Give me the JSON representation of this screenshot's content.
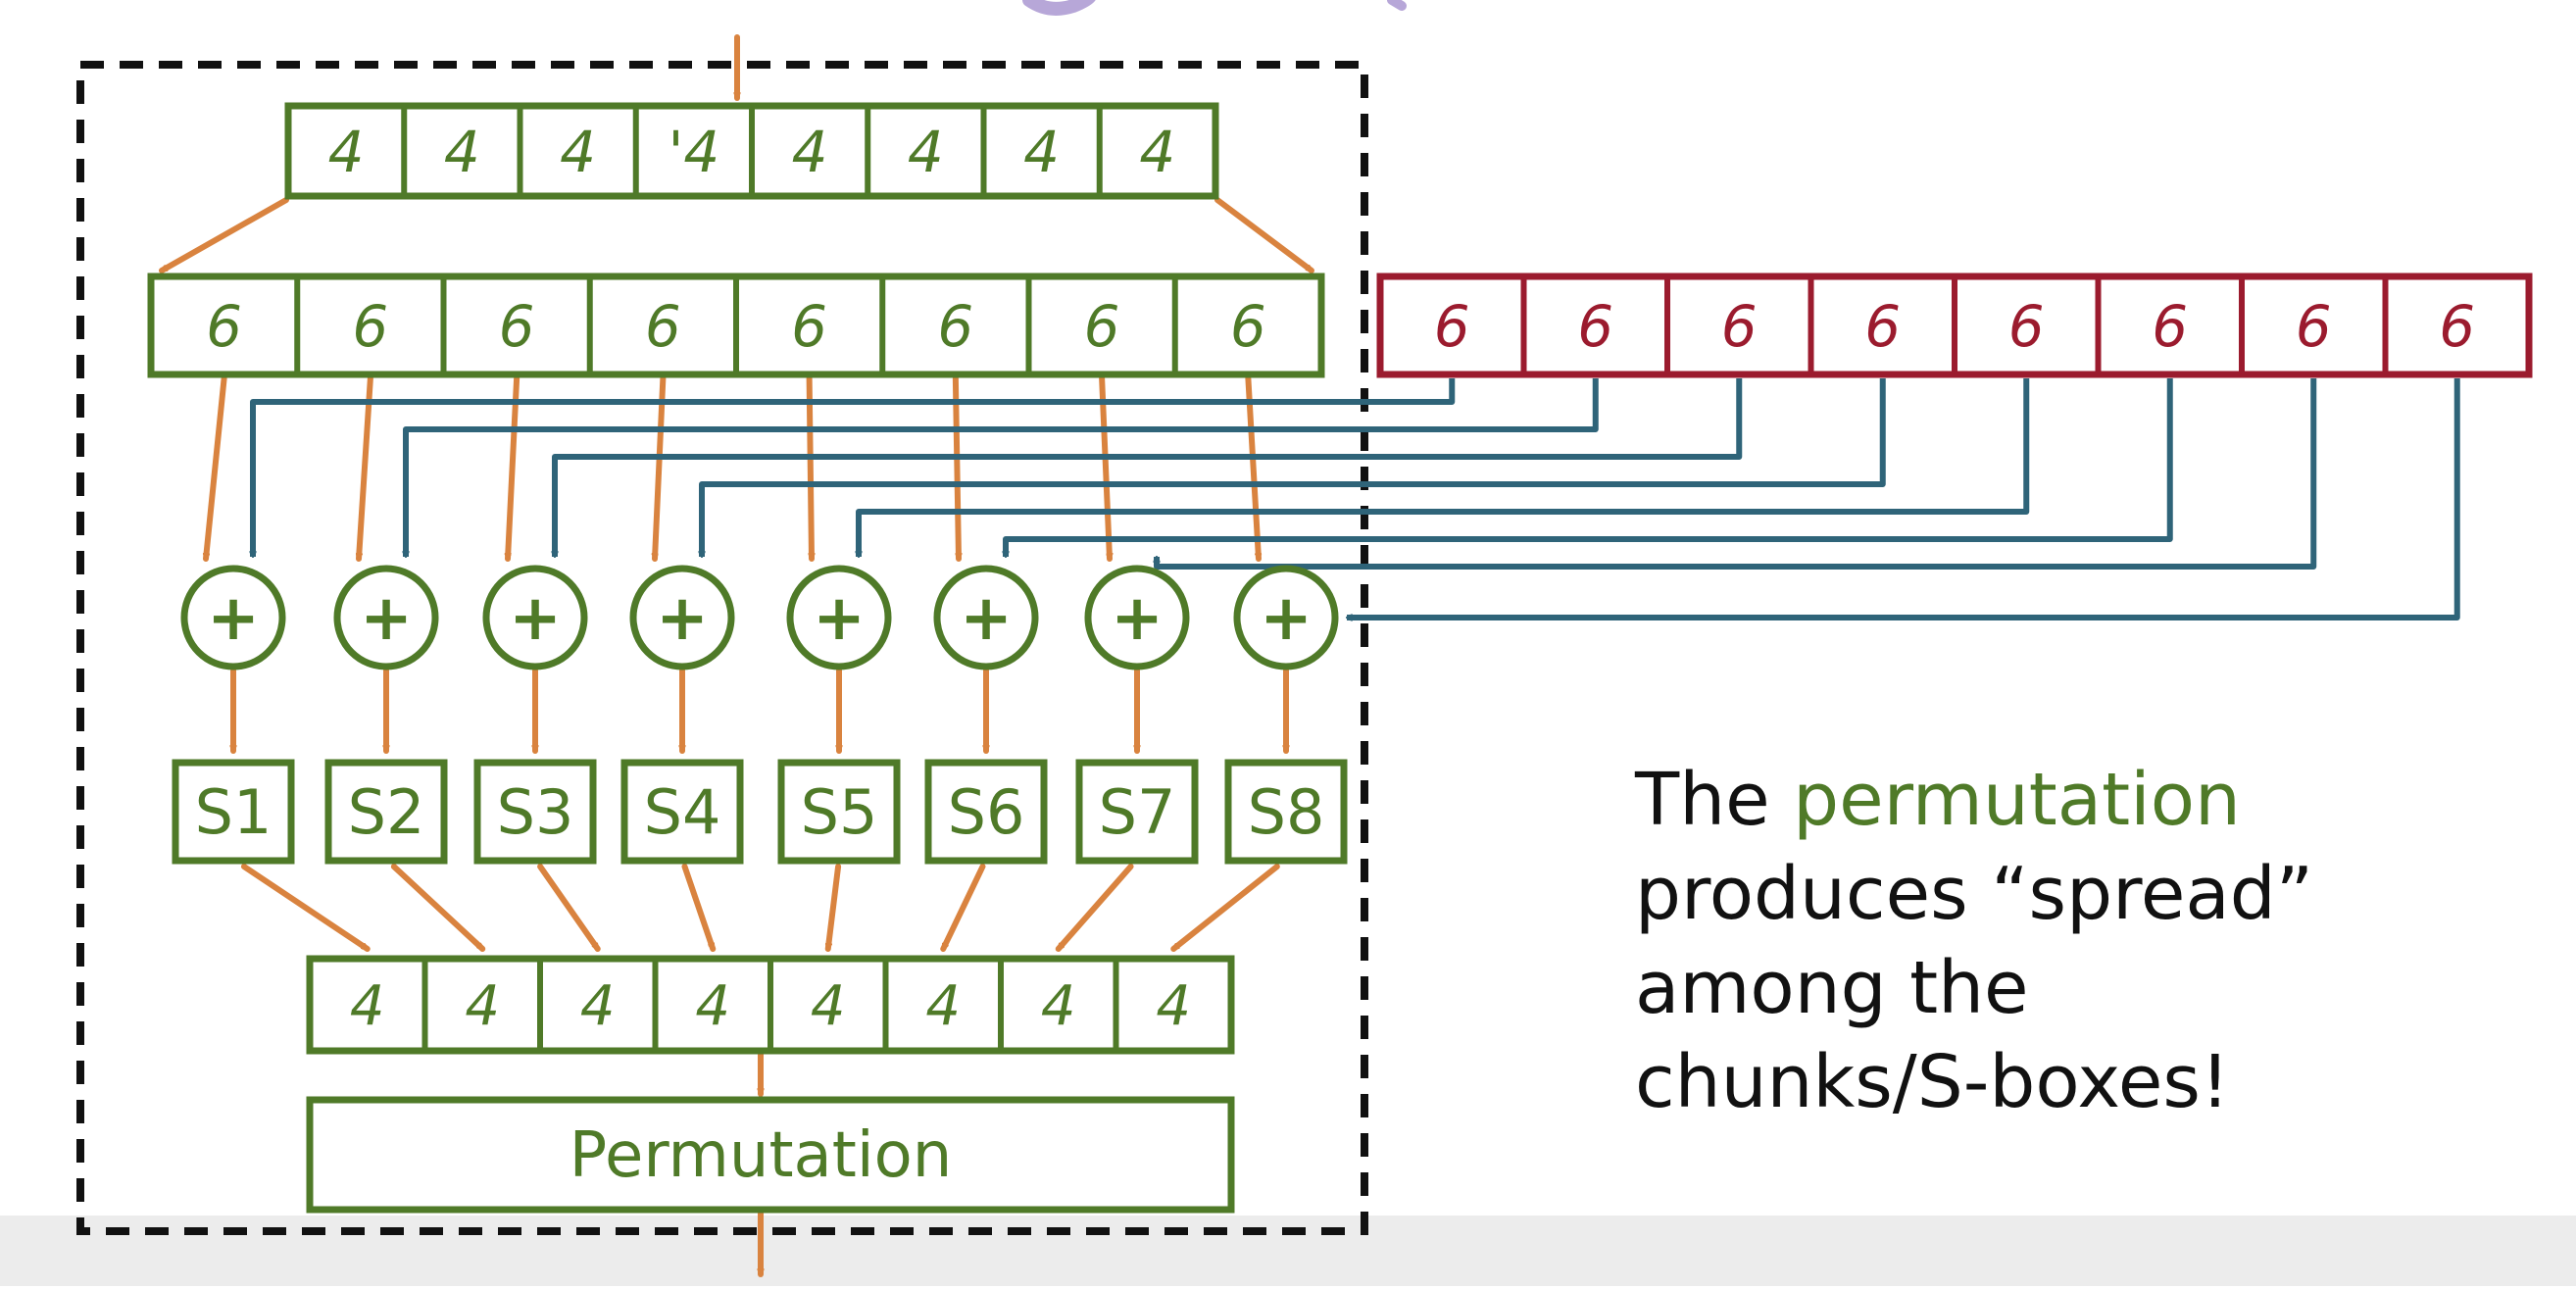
{
  "colors": {
    "green": "#4f7a28",
    "orange": "#d9833f",
    "blue": "#2f6479",
    "red": "#9b1b2e",
    "dash": "#111111",
    "text": "#111111",
    "shadow_band": "#e8e8e8",
    "purple_fragment": "#b7a7d8"
  },
  "diagram": {
    "input_cells": [
      "4",
      "4",
      "4",
      "'4",
      "4",
      "4",
      "4",
      "4"
    ],
    "expanded_cells": [
      "6",
      "6",
      "6",
      "6",
      "6",
      "6",
      "6",
      "6"
    ],
    "key_cells": [
      "6",
      "6",
      "6",
      "6",
      "6",
      "6",
      "6",
      "6"
    ],
    "xor_symbol": "+",
    "sboxes": [
      "S1",
      "S2",
      "S3",
      "S4",
      "S5",
      "S6",
      "S7",
      "S8"
    ],
    "output_cells": [
      "4",
      "4",
      "4",
      "4",
      "4",
      "4",
      "4",
      "4"
    ],
    "permutation_label": "Permutation"
  },
  "note": {
    "part1": "The ",
    "highlight": "permutation",
    "part2": "produces “spread”",
    "part3": "among the",
    "part4": "chunks/S-boxes!"
  }
}
